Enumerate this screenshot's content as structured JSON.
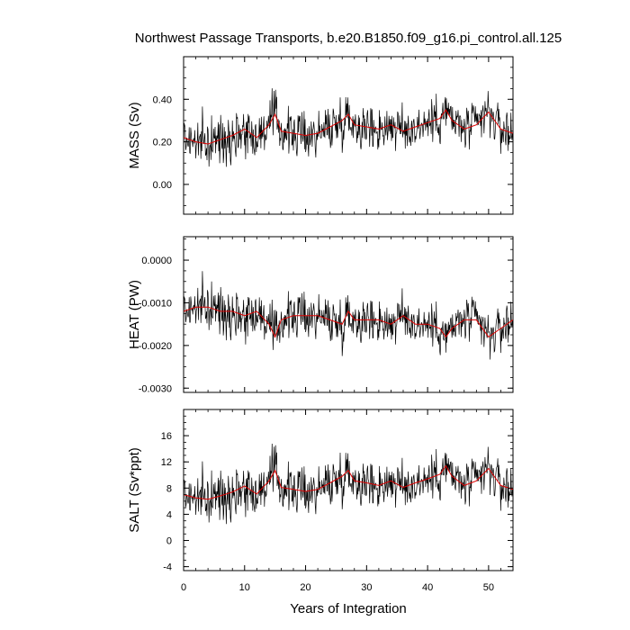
{
  "title": "Northwest Passage Transports, b.e20.B1850.f09_g16.pi_control.all.125",
  "colors": {
    "raw": "#000000",
    "smooth": "#dd0000",
    "axis": "#000000",
    "background": "#ffffff"
  },
  "chart_data": [
    {
      "type": "line",
      "id": "mass",
      "ylabel": "MASS (Sv)",
      "xlabel": "",
      "xlim": [
        0,
        54
      ],
      "ylim": [
        -0.14,
        0.6
      ],
      "yticks": [
        0.0,
        0.2,
        0.4
      ],
      "yticklabels": [
        "0.00",
        "0.20",
        "0.40"
      ],
      "xticks": [
        0,
        10,
        20,
        30,
        40,
        50
      ],
      "xticklabels": [],
      "series": [
        {
          "values_x": [
            0,
            2,
            4,
            6,
            8,
            10,
            12,
            14,
            15,
            16,
            18,
            20,
            22,
            24,
            26,
            27,
            28,
            30,
            32,
            34,
            36,
            38,
            40,
            42,
            43,
            44,
            46,
            48,
            50,
            52,
            54
          ],
          "values_y": [
            0.22,
            0.2,
            0.19,
            0.21,
            0.23,
            0.26,
            0.22,
            0.28,
            0.33,
            0.25,
            0.24,
            0.23,
            0.24,
            0.27,
            0.3,
            0.33,
            0.28,
            0.27,
            0.26,
            0.28,
            0.25,
            0.27,
            0.29,
            0.31,
            0.35,
            0.3,
            0.26,
            0.28,
            0.34,
            0.26,
            0.24
          ]
        }
      ]
    },
    {
      "type": "line",
      "id": "heat",
      "ylabel": "HEAT (PW)",
      "xlabel": "",
      "xlim": [
        0,
        54
      ],
      "ylim": [
        -0.0031,
        0.00055
      ],
      "yticks": [
        -0.003,
        -0.002,
        -0.001,
        0.0
      ],
      "yticklabels": [
        "-0.0030",
        "-0.0020",
        "-0.0010",
        "0.0000"
      ],
      "xticks": [
        0,
        10,
        20,
        30,
        40,
        50
      ],
      "xticklabels": [],
      "series": [
        {
          "values_x": [
            0,
            2,
            4,
            6,
            8,
            10,
            12,
            14,
            15,
            16,
            18,
            20,
            22,
            24,
            26,
            27,
            28,
            30,
            32,
            34,
            36,
            38,
            40,
            42,
            43,
            44,
            46,
            48,
            50,
            52,
            54
          ],
          "values_y": [
            -0.0012,
            -0.0011,
            -0.0011,
            -0.0012,
            -0.0012,
            -0.0013,
            -0.0012,
            -0.0015,
            -0.0018,
            -0.0014,
            -0.0013,
            -0.0013,
            -0.0013,
            -0.0014,
            -0.0015,
            -0.0012,
            -0.0014,
            -0.0014,
            -0.0014,
            -0.0015,
            -0.0013,
            -0.0015,
            -0.0015,
            -0.0016,
            -0.0018,
            -0.0016,
            -0.0014,
            -0.0014,
            -0.0018,
            -0.0016,
            -0.0014
          ]
        }
      ]
    },
    {
      "type": "line",
      "id": "salt",
      "ylabel": "SALT (Sv*ppt)",
      "xlabel": "Years of Integration",
      "xlim": [
        0,
        54
      ],
      "ylim": [
        -4.6,
        20
      ],
      "yticks": [
        -4,
        0,
        4,
        8,
        12,
        16
      ],
      "yticklabels": [
        "-4",
        "0",
        "4",
        "8",
        "12",
        "16"
      ],
      "xticks": [
        0,
        10,
        20,
        30,
        40,
        50
      ],
      "xticklabels": [
        "0",
        "10",
        "20",
        "30",
        "40",
        "50"
      ],
      "series": [
        {
          "values_x": [
            0,
            2,
            4,
            6,
            8,
            10,
            12,
            14,
            15,
            16,
            18,
            20,
            22,
            24,
            26,
            27,
            28,
            30,
            32,
            34,
            36,
            38,
            40,
            42,
            43,
            44,
            46,
            48,
            50,
            52,
            54
          ],
          "values_y": [
            7.0,
            6.5,
            6.3,
            6.8,
            7.4,
            8.3,
            7.1,
            9.1,
            10.7,
            8.1,
            7.8,
            7.5,
            7.8,
            8.8,
            9.8,
            10.7,
            9.1,
            8.8,
            8.4,
            9.1,
            8.1,
            8.8,
            9.4,
            10.1,
            11.4,
            9.8,
            8.4,
            9.1,
            11.0,
            8.4,
            7.8
          ]
        }
      ]
    }
  ]
}
